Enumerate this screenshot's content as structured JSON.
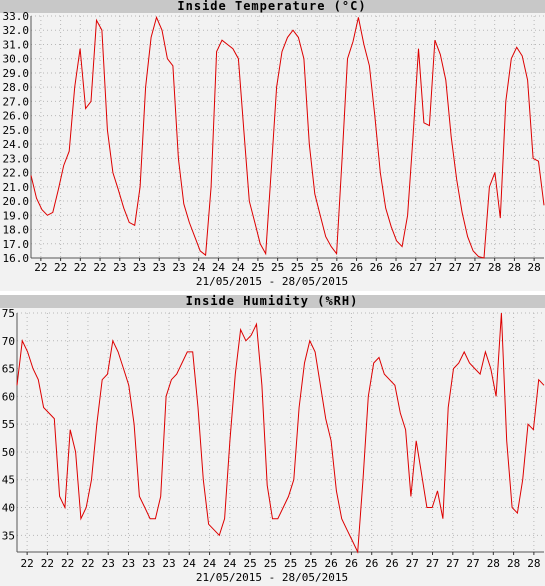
{
  "chart_data": [
    {
      "type": "line",
      "title": "Inside Temperature (°C)",
      "date_range": "21/05/2015 - 28/05/2015",
      "ylim": [
        16.0,
        33.0
      ],
      "y_ticks": [
        "16.0",
        "17.0",
        "18.0",
        "19.0",
        "20.0",
        "21.0",
        "22.0",
        "23.0",
        "24.0",
        "25.0",
        "26.0",
        "27.0",
        "28.0",
        "29.0",
        "30.0",
        "31.0",
        "32.0",
        "33.0"
      ],
      "x_ticks": [
        "22",
        "22",
        "22",
        "22",
        "23",
        "23",
        "23",
        "23",
        "24",
        "24",
        "24",
        "25",
        "25",
        "25",
        "25",
        "26",
        "26",
        "26",
        "26",
        "27",
        "27",
        "27",
        "27",
        "28",
        "28",
        "28"
      ],
      "grid": true,
      "series": [
        {
          "values": [
            21.8,
            20.2,
            19.4,
            19.0,
            19.2,
            20.8,
            22.5,
            23.5,
            28.0,
            30.7,
            26.5,
            27.0,
            32.7,
            32.0,
            25.0,
            22.0,
            20.8,
            19.5,
            18.5,
            18.3,
            21.0,
            28.0,
            31.5,
            32.9,
            32.0,
            30.0,
            29.5,
            23.0,
            19.8,
            18.5,
            17.5,
            16.5,
            16.2,
            21.0,
            30.5,
            31.3,
            31.0,
            30.7,
            30.0,
            25.0,
            20.0,
            18.5,
            17.0,
            16.3,
            22.0,
            28.0,
            30.5,
            31.5,
            32.0,
            31.5,
            30.0,
            24.0,
            20.5,
            19.0,
            17.5,
            16.8,
            16.3,
            23.0,
            30.0,
            31.2,
            32.9,
            31.0,
            29.5,
            26.0,
            22.0,
            19.5,
            18.2,
            17.2,
            16.8,
            19.0,
            24.5,
            30.7,
            25.5,
            25.3,
            31.3,
            30.3,
            28.5,
            24.5,
            21.5,
            19.2,
            17.5,
            16.5,
            16.1,
            16.0,
            21.0,
            22.0,
            18.8,
            27.0,
            30.0,
            30.8,
            30.2,
            28.5,
            23.0,
            22.8,
            19.7
          ]
        }
      ]
    },
    {
      "type": "line",
      "title": "Inside Humidity (%RH)",
      "date_range": "21/05/2015 - 28/05/2015",
      "ylim": [
        32,
        75
      ],
      "y_ticks": [
        "35",
        "40",
        "45",
        "50",
        "55",
        "60",
        "65",
        "70",
        "75"
      ],
      "x_ticks": [
        "22",
        "22",
        "22",
        "22",
        "23",
        "23",
        "23",
        "23",
        "24",
        "24",
        "24",
        "25",
        "25",
        "25",
        "25",
        "26",
        "26",
        "26",
        "26",
        "27",
        "27",
        "27",
        "27",
        "28",
        "28",
        "28"
      ],
      "grid": true,
      "series": [
        {
          "values": [
            62,
            70,
            68,
            65,
            63,
            58,
            57,
            56,
            42,
            40,
            54,
            50,
            38,
            40,
            45,
            55,
            63,
            64,
            70,
            68,
            65,
            62,
            55,
            42,
            40,
            38,
            38,
            42,
            60,
            63,
            64,
            66,
            68,
            68,
            58,
            45,
            37,
            36,
            35,
            38,
            52,
            64,
            72,
            70,
            71,
            73,
            62,
            44,
            38,
            38,
            40,
            42,
            45,
            58,
            66,
            70,
            68,
            62,
            56,
            52,
            43,
            38,
            36,
            34,
            32,
            45,
            60,
            66,
            67,
            64,
            63,
            62,
            57,
            54,
            42,
            52,
            46,
            40,
            40,
            43,
            38,
            58,
            65,
            66,
            68,
            66,
            65,
            64,
            68,
            65,
            60,
            75,
            52,
            40,
            39,
            45,
            55,
            54,
            63,
            62
          ]
        }
      ]
    }
  ]
}
